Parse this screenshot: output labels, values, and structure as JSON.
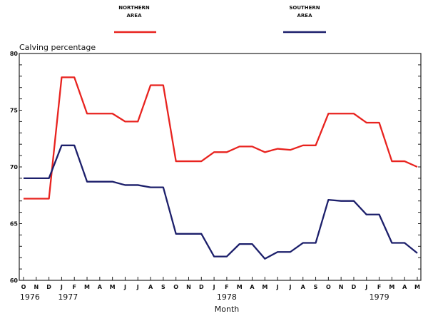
{
  "chart_data": {
    "type": "line",
    "ylabel": "Calving percentage",
    "xlabel": "Month",
    "ylim": [
      60,
      80
    ],
    "yticks": [
      "60",
      "65",
      "70",
      "75",
      "80"
    ],
    "yticks_values": [
      60,
      65,
      70,
      75,
      80
    ],
    "legend_placement": "top",
    "categories": [
      "O",
      "N",
      "D",
      "J",
      "F",
      "M",
      "A",
      "M",
      "J",
      "J",
      "A",
      "S",
      "O",
      "N",
      "D",
      "J",
      "F",
      "M",
      "A",
      "M",
      "J",
      "J",
      "A",
      "S",
      "O",
      "N",
      "D",
      "J",
      "F",
      "M",
      "A",
      "M"
    ],
    "year_labels": [
      {
        "label": "1976",
        "month_index": 0.5
      },
      {
        "label": "1977",
        "month_index": 3.5
      },
      {
        "label": "1978",
        "month_index": 16
      },
      {
        "label": "1979",
        "month_index": 28
      }
    ],
    "series": [
      {
        "name": "NORTHERN AREA",
        "name_line1": "NORTHERN",
        "name_line2": "AREA",
        "color": "#e8231f",
        "values": [
          67.2,
          67.2,
          67.2,
          77.9,
          77.9,
          74.7,
          74.7,
          74.7,
          74.0,
          74.0,
          77.2,
          77.2,
          70.5,
          70.5,
          70.5,
          71.3,
          71.3,
          71.8,
          71.8,
          71.3,
          71.6,
          71.5,
          71.9,
          71.9,
          74.7,
          74.7,
          74.7,
          73.9,
          73.9,
          70.5,
          70.5,
          70.0
        ]
      },
      {
        "name": "SOUTHERN AREA",
        "name_line1": "SOUTHERN",
        "name_line2": "AREA",
        "color": "#1c1f6b",
        "values": [
          69.0,
          69.0,
          69.0,
          71.9,
          71.9,
          68.7,
          68.7,
          68.7,
          68.4,
          68.4,
          68.2,
          68.2,
          64.1,
          64.1,
          64.1,
          62.1,
          62.1,
          63.2,
          63.2,
          61.9,
          62.5,
          62.5,
          63.3,
          63.3,
          67.1,
          67.0,
          67.0,
          65.8,
          65.8,
          63.3,
          63.3,
          62.4
        ]
      }
    ]
  }
}
